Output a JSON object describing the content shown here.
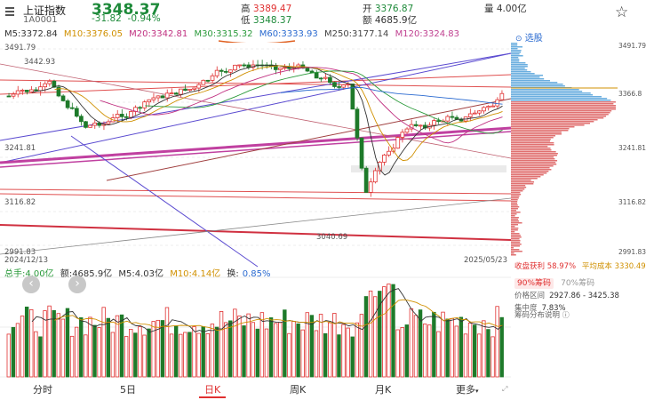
{
  "header": {
    "name": "上证指数",
    "code": "1A0001",
    "price": "3348.37",
    "change": "-31.82",
    "change_pct": "-0.94%",
    "high_label": "高",
    "high": "3389.47",
    "low_label": "低",
    "low": "3348.37",
    "open_label": "开",
    "open": "3376.87",
    "amount_label": "额",
    "amount": "4685.9亿",
    "volume_label": "量",
    "volume": "4.00亿"
  },
  "ma_legend": {
    "ma5": "M5:3372.84",
    "ma10": "M10:3376.05",
    "ma20": "M20:3342.81",
    "ma30": "M30:3315.32",
    "ma60": "M60:3333.93",
    "ma250": "M250:3177.14",
    "ma120": "M120:3324.83"
  },
  "price_axis": {
    "left_labels": [
      "3491.79",
      "3241.81",
      "3116.82",
      "2991.83"
    ],
    "annotations": {
      "high_mark": "3442.93",
      "low_mark": "3040.69"
    },
    "date_start": "2024/12/13",
    "date_end": "2025/05/23"
  },
  "volume_legend": {
    "total": "总手:4.00亿",
    "amount": "额:4685.9亿",
    "m5": "M5:4.03亿",
    "m10": "M10:4.14亿",
    "turnover_label": "换:",
    "turnover": "0.85%"
  },
  "sidebar": {
    "select_label": "选股",
    "axis_labels": [
      "3491.79",
      "3366.8",
      "3241.81",
      "3116.82",
      "2991.83"
    ],
    "profit_label": "收盘获利",
    "profit": "58.97%",
    "avgcost_label": "平均成本",
    "avgcost": "3330.49",
    "chip90": "90%筹码",
    "chip70": "70%筹码",
    "range_label": "价格区间",
    "range": "2927.86 - 3425.38",
    "concentration_label": "集中度",
    "concentration": "7.83%",
    "explain_label": "筹码分布说明"
  },
  "tabs": [
    "分时",
    "5日",
    "日K",
    "周K",
    "月K",
    "更多"
  ],
  "active_tab": "日K"
}
